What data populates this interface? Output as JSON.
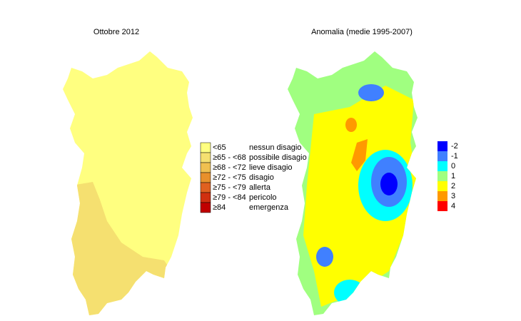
{
  "maps": [
    {
      "title": "Ottobre 2012",
      "legend": [
        {
          "range": "<65",
          "label": "nessun disagio",
          "color": "#ffff80"
        },
        {
          "range": "≥65 - <68",
          "label": "possibile disagio",
          "color": "#f5e070"
        },
        {
          "range": "≥68 - <72",
          "label": "lieve disagio",
          "color": "#f0c050"
        },
        {
          "range": "≥72 - <75",
          "label": "disagio",
          "color": "#e8902c"
        },
        {
          "range": "≥75 - <79",
          "label": "allerta",
          "color": "#e06020"
        },
        {
          "range": "≥79 - <84",
          "label": "pericolo",
          "color": "#d03010"
        },
        {
          "range": "≥84",
          "label": "emergenza",
          "color": "#c00000"
        }
      ]
    },
    {
      "title": "Anomalia (medie 1995-2007)",
      "legend": [
        {
          "label": "-2",
          "color": "#0000ff"
        },
        {
          "label": "-1",
          "color": "#4080ff"
        },
        {
          "label": "0",
          "color": "#00ffff"
        },
        {
          "label": "1",
          "color": "#a0ff80"
        },
        {
          "label": "2",
          "color": "#ffff00"
        },
        {
          "label": "3",
          "color": "#ff9900"
        },
        {
          "label": "4",
          "color": "#ff0000"
        }
      ]
    }
  ]
}
